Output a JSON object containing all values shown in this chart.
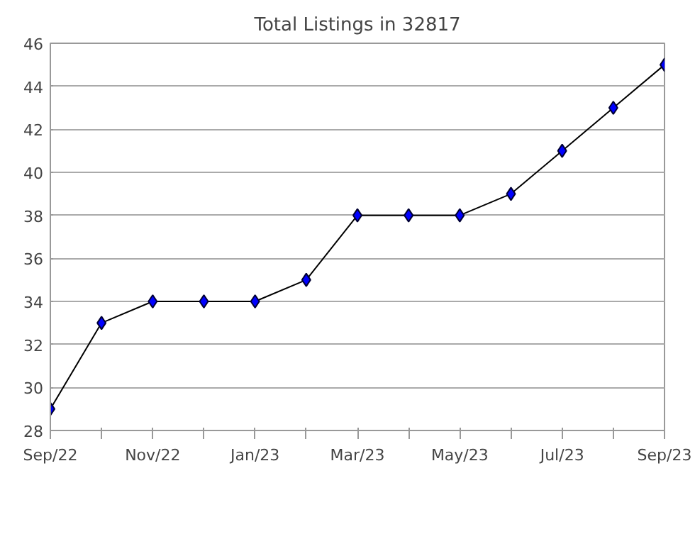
{
  "chart_data": {
    "type": "line",
    "title": "Total Listings in 32817",
    "categories": [
      "Sep/22",
      null,
      "Nov/22",
      null,
      "Jan/23",
      null,
      "Mar/23",
      null,
      "May/23",
      null,
      "Jul/23",
      null,
      "Sep/23"
    ],
    "series": [
      {
        "color": "#000000",
        "values": [
          29,
          33,
          34,
          34,
          34,
          35,
          38,
          38,
          38,
          39,
          41,
          43,
          45
        ]
      }
    ],
    "ylim": [
      28,
      46
    ],
    "yticks": [
      28,
      30,
      32,
      34,
      36,
      38,
      40,
      42,
      44,
      46
    ],
    "grid": "y",
    "marker": "diamond",
    "line_style": "solid"
  }
}
